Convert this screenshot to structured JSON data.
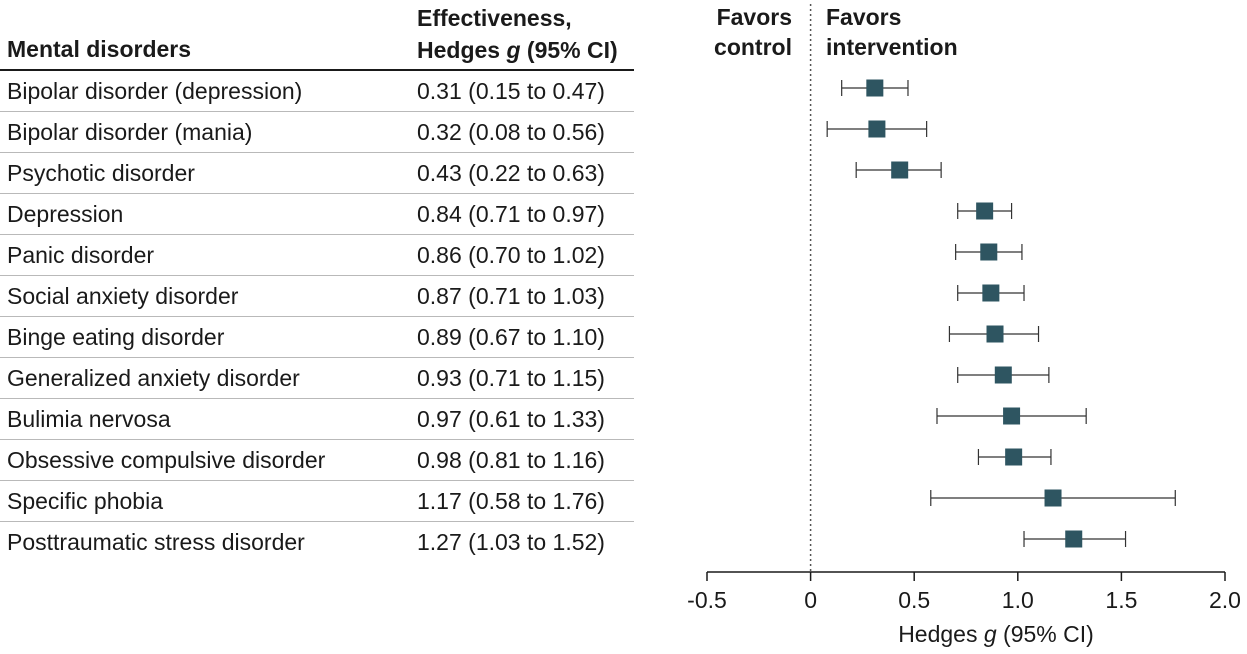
{
  "table": {
    "header_disorder": "Mental disorders",
    "header_effect_line1": "Effectiveness,",
    "header_effect_line2_prefix": "Hedges ",
    "header_effect_line2_g": "g",
    "header_effect_line2_suffix": " (95% CI)"
  },
  "favors": {
    "control_line1": "Favors",
    "control_line2": "control",
    "intervention_line1": "Favors",
    "intervention_line2": "intervention"
  },
  "chart_data": {
    "type": "forest",
    "xlabel_prefix": "Hedges ",
    "xlabel_g": "g",
    "xlabel_suffix": " (95% CI)",
    "xlim": [
      -0.5,
      2.0
    ],
    "xticks": [
      -0.5,
      0,
      0.5,
      1.0,
      1.5,
      2.0
    ],
    "xtick_labels": [
      "-0.5",
      "0",
      "0.5",
      "1.0",
      "1.5",
      "2.0"
    ],
    "reference_line": 0,
    "marker_color": "#2e5561",
    "rows": [
      {
        "label": "Bipolar disorder (depression)",
        "g": 0.31,
        "lo": 0.15,
        "hi": 0.47,
        "text": "0.31 (0.15 to 0.47)"
      },
      {
        "label": "Bipolar disorder (mania)",
        "g": 0.32,
        "lo": 0.08,
        "hi": 0.56,
        "text": "0.32 (0.08 to 0.56)"
      },
      {
        "label": "Psychotic disorder",
        "g": 0.43,
        "lo": 0.22,
        "hi": 0.63,
        "text": "0.43 (0.22 to 0.63)"
      },
      {
        "label": "Depression",
        "g": 0.84,
        "lo": 0.71,
        "hi": 0.97,
        "text": "0.84 (0.71 to 0.97)"
      },
      {
        "label": "Panic disorder",
        "g": 0.86,
        "lo": 0.7,
        "hi": 1.02,
        "text": "0.86 (0.70 to 1.02)"
      },
      {
        "label": "Social anxiety disorder",
        "g": 0.87,
        "lo": 0.71,
        "hi": 1.03,
        "text": "0.87 (0.71 to 1.03)"
      },
      {
        "label": "Binge eating disorder",
        "g": 0.89,
        "lo": 0.67,
        "hi": 1.1,
        "text": "0.89 (0.67 to 1.10)"
      },
      {
        "label": "Generalized anxiety disorder",
        "g": 0.93,
        "lo": 0.71,
        "hi": 1.15,
        "text": "0.93 (0.71 to 1.15)"
      },
      {
        "label": "Bulimia nervosa",
        "g": 0.97,
        "lo": 0.61,
        "hi": 1.33,
        "text": "0.97 (0.61 to 1.33)"
      },
      {
        "label": "Obsessive compulsive disorder",
        "g": 0.98,
        "lo": 0.81,
        "hi": 1.16,
        "text": "0.98 (0.81 to 1.16)"
      },
      {
        "label": "Specific phobia",
        "g": 1.17,
        "lo": 0.58,
        "hi": 1.76,
        "text": "1.17 (0.58 to 1.76)"
      },
      {
        "label": "Posttraumatic stress disorder",
        "g": 1.27,
        "lo": 1.03,
        "hi": 1.52,
        "text": "1.27 (1.03 to 1.52)"
      }
    ]
  }
}
